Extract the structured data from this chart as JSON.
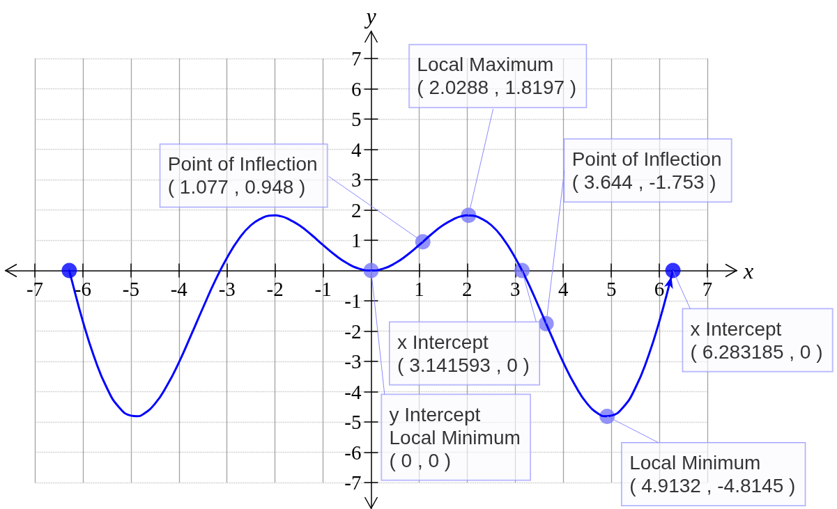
{
  "chart_data": {
    "type": "line",
    "xlabel": "x",
    "ylabel": "y",
    "xlim": [
      -7,
      7
    ],
    "ylim": [
      -7,
      7
    ],
    "xticks": [
      -7,
      -6,
      -5,
      -4,
      -3,
      -2,
      -1,
      1,
      2,
      3,
      4,
      5,
      6,
      7
    ],
    "yticks": [
      -7,
      -6,
      -5,
      -4,
      -3,
      -2,
      -1,
      1,
      2,
      3,
      4,
      5,
      6,
      7
    ],
    "grid": true,
    "series": [
      {
        "type": "line",
        "color": "#0000ff",
        "x": [
          -6.283185,
          -6.25,
          -6,
          -5.75,
          -5.5,
          -5.25,
          -5,
          -4.875,
          -4.75,
          -4.5,
          -4.25,
          -4,
          -3.75,
          -3.5,
          -3.25,
          -3,
          -2.75,
          -2.5,
          -2.25,
          -2.125,
          -2,
          -1.875,
          -1.75,
          -1.5,
          -1.25,
          -1,
          -0.75,
          -0.5,
          -0.25,
          0,
          0.25,
          0.5,
          0.75,
          1,
          1.25,
          1.5,
          1.75,
          1.875,
          2,
          2.125,
          2.25,
          2.5,
          2.75,
          3,
          3.25,
          3.5,
          3.75,
          4,
          4.25,
          4.5,
          4.75,
          4.875,
          5,
          5.25,
          5.5,
          5.75,
          6,
          6.25,
          6.283185
        ],
        "values": [
          0,
          -0.21,
          -1.68,
          -2.92,
          -3.88,
          -4.51,
          -4.79,
          -4.81,
          -4.75,
          -4.4,
          -3.8,
          -3.03,
          -2.14,
          -1.23,
          -0.35,
          0.42,
          1.05,
          1.5,
          1.75,
          1.81,
          1.82,
          1.79,
          1.72,
          1.5,
          1.19,
          0.84,
          0.51,
          0.24,
          0.06,
          0,
          0.06,
          0.24,
          0.51,
          0.84,
          1.19,
          1.5,
          1.72,
          1.79,
          1.82,
          1.81,
          1.75,
          1.5,
          1.05,
          0.42,
          -0.35,
          -1.23,
          -2.14,
          -3.03,
          -3.8,
          -4.4,
          -4.75,
          -4.81,
          -4.79,
          -4.51,
          -3.88,
          -2.92,
          -1.68,
          -0.21,
          0
        ]
      },
      {
        "type": "scatter",
        "marker": "circle",
        "color": "#0000ff",
        "x": [
          -6.283185,
          6.283185
        ],
        "values": [
          0,
          0
        ]
      },
      {
        "type": "scatter",
        "marker": "circle",
        "color": "#7878f8",
        "x": [
          0,
          1.077,
          2.0288,
          3.141593,
          3.644,
          4.9132
        ],
        "values": [
          0,
          0.948,
          1.8197,
          0,
          -1.753,
          -4.8145
        ]
      }
    ],
    "annotations": [
      {
        "text": "y Intercept\nLocal Minimum\n( 0 , 0 )",
        "x": 0,
        "y": 0
      },
      {
        "text": "Point of Inflection\n( 1.077 , 0.948 )",
        "x": 1.077,
        "y": 0.948
      },
      {
        "text": "Local Maximum\n( 2.0288 , 1.8197 )",
        "x": 2.0288,
        "y": 1.8197
      },
      {
        "text": "x Intercept\n( 3.141593 , 0 )",
        "x": 3.141593,
        "y": 0
      },
      {
        "text": "Point of Inflection\n( 3.644 , -1.753 )",
        "x": 3.644,
        "y": -1.753
      },
      {
        "text": "Local Minimum\n( 4.9132 , -4.8145 )",
        "x": 4.9132,
        "y": -4.8145
      },
      {
        "text": "x Intercept\n( 6.283185 , 0 )",
        "x": 6.283185,
        "y": 0
      }
    ]
  }
}
